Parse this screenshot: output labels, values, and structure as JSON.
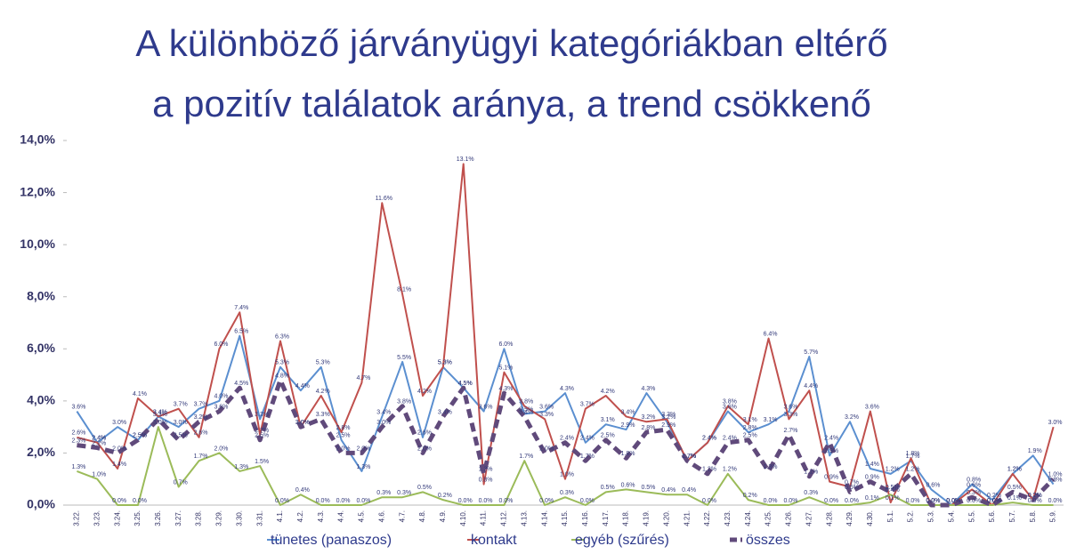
{
  "chart_data": {
    "type": "line",
    "title_lines": [
      "A különböző járványügyi kategóriákban eltérő",
      "a pozitív találatok aránya, a trend csökkenő"
    ],
    "categories": [
      "3.22.",
      "3.23.",
      "3.24.",
      "3.25.",
      "3.26.",
      "3.27.",
      "3.28.",
      "3.29.",
      "3.30.",
      "3.31.",
      "4.1.",
      "4.2.",
      "4.3.",
      "4.4.",
      "4.5.",
      "4.6.",
      "4.7.",
      "4.8.",
      "4.9.",
      "4.10.",
      "4.11.",
      "4.12.",
      "4.13.",
      "4.14.",
      "4.15.",
      "4.16.",
      "4.17.",
      "4.18.",
      "4.19.",
      "4.20.",
      "4.21.",
      "4.22.",
      "4.23.",
      "4.24.",
      "4.25.",
      "4.26.",
      "4.27.",
      "4.28.",
      "4.29.",
      "4.30.",
      "5.1.",
      "5.2.",
      "5.3.",
      "5.4.",
      "5.5.",
      "5.6.",
      "5.7.",
      "5.8.",
      "5.9."
    ],
    "ylim": [
      0,
      14
    ],
    "yticks": [
      {
        "value": 0,
        "label": "0,0%"
      },
      {
        "value": 2,
        "label": "2,0%"
      },
      {
        "value": 4,
        "label": "4,0%"
      },
      {
        "value": 6,
        "label": "6,0%"
      },
      {
        "value": 8,
        "label": "8,0%"
      },
      {
        "value": 10,
        "label": "10,0%"
      },
      {
        "value": 12,
        "label": "12,0%"
      },
      {
        "value": 14,
        "label": "14,0%"
      }
    ],
    "grid": false,
    "series": [
      {
        "name": "tünetes (panaszos)",
        "color": "#5b8fd0",
        "dashed": false,
        "values": [
          3.6,
          2.4,
          3.0,
          2.5,
          3.4,
          3.0,
          3.7,
          4.0,
          6.5,
          3.3,
          5.3,
          4.4,
          5.3,
          2.5,
          1.3,
          3.4,
          5.5,
          2.6,
          5.3,
          4.5,
          3.6,
          6.0,
          3.5,
          3.6,
          4.3,
          2.4,
          3.1,
          2.9,
          4.3,
          3.2,
          1.7,
          2.4,
          3.6,
          2.8,
          3.1,
          3.6,
          5.7,
          1.9,
          3.2,
          1.4,
          1.2,
          1.7,
          0.6,
          0.0,
          0.8,
          0.2,
          1.2,
          1.9,
          0.8
        ],
        "value_labels": [
          "3.6%",
          "2.4%",
          "3.0%",
          "2.5%",
          "3.4%",
          "3.0%",
          "3.7%",
          "4.0%",
          "6.5%",
          "3.3%",
          "5.3%",
          "4.4%",
          "5.3%",
          "2.5%",
          "1.3%",
          "3.4%",
          "5.5%",
          "2.6%",
          "5.3%",
          "4.5%",
          "3.6%",
          "6.0%",
          "3.5%",
          "3.6%",
          "4.3%",
          "2.4%",
          "3.1%",
          "2.9%",
          "4.3%",
          "3.2%",
          "1.7%",
          "2.4%",
          "3.6%",
          "2.8%",
          "3.1%",
          "3.6%",
          "5.7%",
          "1.9%",
          "3.2%",
          "1.4%",
          "1.2%",
          "1.7%",
          "0.6%",
          "0.0%",
          "0.8%",
          "0.2%",
          "1.2%",
          "1.9%",
          "0.8%"
        ]
      },
      {
        "name": "kontakt",
        "color": "#c0504d",
        "dashed": false,
        "values": [
          2.6,
          2.4,
          1.4,
          4.1,
          3.4,
          3.7,
          2.6,
          6.0,
          7.4,
          2.7,
          6.3,
          3.0,
          4.2,
          2.8,
          4.7,
          11.6,
          8.1,
          4.2,
          5.3,
          13.1,
          0.8,
          5.1,
          3.8,
          3.3,
          1.0,
          3.7,
          4.2,
          3.4,
          3.2,
          3.3,
          1.7,
          2.4,
          3.8,
          3.1,
          6.4,
          3.3,
          4.4,
          0.9,
          0.7,
          3.6,
          0.1,
          1.8,
          0.0,
          0.0,
          0.6,
          0.0,
          1.2,
          0.2,
          3.0
        ],
        "value_labels": [
          "2.6%",
          "2.4%",
          "1.4%",
          "4.1%",
          "3.4%",
          "3.7%",
          "2.6%",
          "6.0%",
          "7.4%",
          "2.7%",
          "6.3%",
          "3.0%",
          "4.2%",
          "2.8%",
          "4.7%",
          "11.6%",
          "8.1%",
          "4.2%",
          "5.3%",
          "13.1%",
          "0.8%",
          "5.1%",
          "3.8%",
          "3.3%",
          "1.0%",
          "3.7%",
          "4.2%",
          "3.4%",
          "3.2%",
          "3.3%",
          "1.7%",
          "2.4%",
          "3.8%",
          "3.1%",
          "6.4%",
          "3.3%",
          "4.4%",
          "0.9%",
          "0.7%",
          "3.6%",
          "0.1%",
          "1.8%",
          "0.0%",
          "0.0%",
          "0.6%",
          "0.0%",
          "1.2%",
          "0.2%",
          "3.0%"
        ]
      },
      {
        "name": "egyéb (szűrés)",
        "color": "#9bbb59",
        "dashed": false,
        "values": [
          1.3,
          1.0,
          0.0,
          0.0,
          3.0,
          0.7,
          1.7,
          2.0,
          1.3,
          1.5,
          0.0,
          0.4,
          0.0,
          0.0,
          0.0,
          0.3,
          0.3,
          0.5,
          0.2,
          0.0,
          0.0,
          0.0,
          1.7,
          0.0,
          0.3,
          0.0,
          0.5,
          0.6,
          0.5,
          0.4,
          0.4,
          0.0,
          1.2,
          0.2,
          0.0,
          0.0,
          0.3,
          0.0,
          0.0,
          0.1,
          0.4,
          0.0,
          0.0,
          0.0,
          0.0,
          0.0,
          0.1,
          0.0,
          0.0
        ],
        "value_labels": [
          "1.3%",
          "1.0%",
          "0.0%",
          "0.0%",
          "3.0%",
          "0.7%",
          "1.7%",
          "2.0%",
          "1.3%",
          "1.5%",
          "0.0%",
          "0.4%",
          "0.0%",
          "0.0%",
          "0.0%",
          "0.3%",
          "0.3%",
          "0.5%",
          "0.2%",
          "0.0%",
          "0.0%",
          "0.0%",
          "1.7%",
          "0.0%",
          "0.3%",
          "0.0%",
          "0.5%",
          "0.6%",
          "0.5%",
          "0.4%",
          "0.4%",
          "0.0%",
          "1.2%",
          "0.2%",
          "0.0%",
          "0.0%",
          "0.3%",
          "0.0%",
          "0.0%",
          "0.1%",
          "0.4%",
          "0.0%",
          "0.0%",
          "0.0%",
          "0.0%",
          "0.0%",
          "0.1%",
          "0.0%",
          "0.0%"
        ]
      },
      {
        "name": "összes",
        "color": "#604a7b",
        "dashed": true,
        "values": [
          2.3,
          2.2,
          2.0,
          2.5,
          3.3,
          2.5,
          3.2,
          3.6,
          4.5,
          2.5,
          4.8,
          3.0,
          3.3,
          2.0,
          2.0,
          3.0,
          3.8,
          2.0,
          3.4,
          4.5,
          1.2,
          4.3,
          3.4,
          2.0,
          2.4,
          1.7,
          2.5,
          1.8,
          2.8,
          2.9,
          1.7,
          1.2,
          2.4,
          2.5,
          1.3,
          2.7,
          1.1,
          2.4,
          0.5,
          0.9,
          0.5,
          1.2,
          0.0,
          0.0,
          0.3,
          0.0,
          0.5,
          0.2,
          1.0
        ],
        "value_labels": [
          "2.3%",
          "2.2%",
          "2.0%",
          "2.5%",
          "3.3%",
          "2.5%",
          "3.2%",
          "3.6%",
          "4.5%",
          "2.5%",
          "4.8%",
          "3.0%",
          "3.3%",
          "2.0%",
          "2.0%",
          "3.0%",
          "3.8%",
          "2.0%",
          "3.4%",
          "4.5%",
          "1.2%",
          "4.3%",
          "3.4%",
          "2.0%",
          "2.4%",
          "1.7%",
          "2.5%",
          "1.8%",
          "2.8%",
          "2.9%",
          "1.7%",
          "1.2%",
          "2.4%",
          "2.5%",
          "1.3%",
          "2.7%",
          "1.1%",
          "2.4%",
          "0.5%",
          "0.9%",
          "0.5%",
          "1.2%",
          "0.0%",
          "0.0%",
          "0.3%",
          "0.0%",
          "0.5%",
          "0.2%",
          "1.0%"
        ]
      }
    ]
  }
}
